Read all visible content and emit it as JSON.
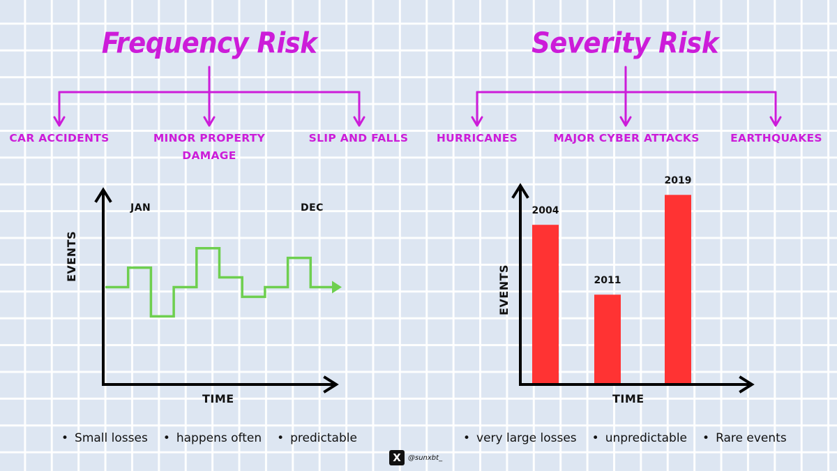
{
  "frequency": {
    "title": "Frequency Risk",
    "categories": [
      "CAR ACCIDENTS",
      "MINOR PROPERTY DAMAGE",
      "SLIP AND FALLS"
    ],
    "chart": {
      "ylabel": "EVENTS",
      "xlabel": "TIME",
      "start_label": "JAN",
      "end_label": "DEC",
      "line_color": "#6ecf4f"
    },
    "bullets": [
      "Small losses",
      "happens often",
      "predictable"
    ]
  },
  "severity": {
    "title": "Severity Risk",
    "categories": [
      "HURRICANES",
      "MAJOR CYBER ATTACKS",
      "EARTHQUAKES"
    ],
    "bullets": [
      "very large losses",
      "unpredictable",
      "Rare events"
    ]
  },
  "chart_data": [
    {
      "type": "line",
      "title": "Frequency Risk",
      "xlabel": "TIME",
      "ylabel": "EVENTS",
      "step": true,
      "x_labels": [
        "JAN",
        "DEC"
      ],
      "values": [
        5,
        6,
        3.5,
        5,
        7,
        5.5,
        4.5,
        5,
        6.5,
        5
      ],
      "ylim": [
        0,
        10
      ]
    },
    {
      "type": "bar",
      "title": "Severity Risk",
      "xlabel": "TIME",
      "ylabel": "EVENTS",
      "categories": [
        "2004",
        "2011",
        "2019"
      ],
      "values": [
        8,
        4.5,
        9.5
      ],
      "ylim": [
        0,
        10
      ],
      "bar_color": "#ff3333"
    }
  ],
  "colors": {
    "accent": "#cc1cd9",
    "axis": "#000000"
  },
  "credit": {
    "logo_icon": "x-logo-icon",
    "logo_text": "X",
    "handle": "@sunxbt_"
  }
}
